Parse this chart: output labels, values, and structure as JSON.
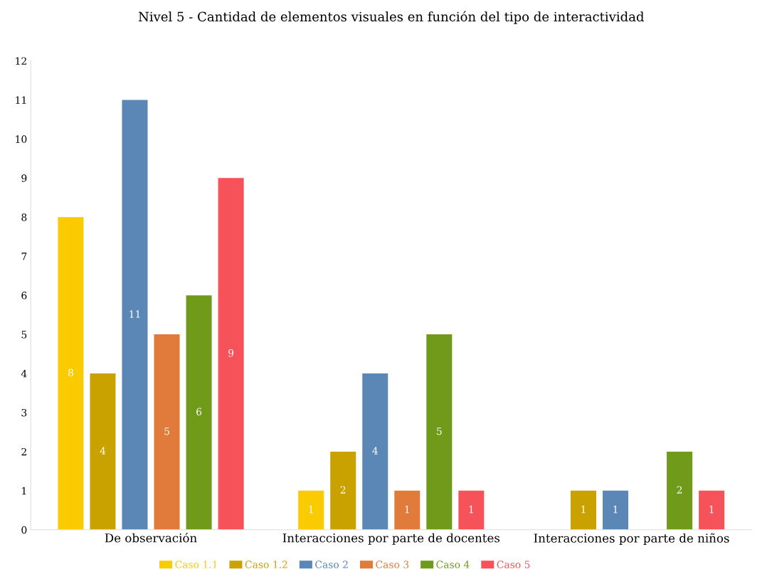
{
  "chart_data": {
    "type": "bar",
    "title": "Nivel 5 - Cantidad de elementos visuales en función del tipo de interactividad",
    "categories": [
      "De observación",
      "Interacciones por parte de docentes",
      "Interacciones por parte de niños"
    ],
    "series": [
      {
        "name": "Caso 1.1",
        "color": "#f9cb00",
        "values": [
          8,
          1,
          null
        ]
      },
      {
        "name": "Caso 1.2",
        "color": "#c9a200",
        "values": [
          4,
          2,
          1
        ]
      },
      {
        "name": "Caso 2",
        "color": "#5b87b6",
        "values": [
          11,
          4,
          1
        ]
      },
      {
        "name": "Caso 3",
        "color": "#e07b3c",
        "values": [
          5,
          1,
          null
        ]
      },
      {
        "name": "Caso 4",
        "color": "#6f9a1a",
        "values": [
          6,
          5,
          2
        ]
      },
      {
        "name": "Caso 5",
        "color": "#f5525a",
        "values": [
          9,
          1,
          1
        ]
      }
    ],
    "ylim": [
      0,
      12
    ],
    "yticks": [
      0,
      1,
      2,
      3,
      4,
      5,
      6,
      7,
      8,
      9,
      10,
      11,
      12
    ],
    "data_labels": true,
    "grid": false,
    "legend": "bottom"
  }
}
